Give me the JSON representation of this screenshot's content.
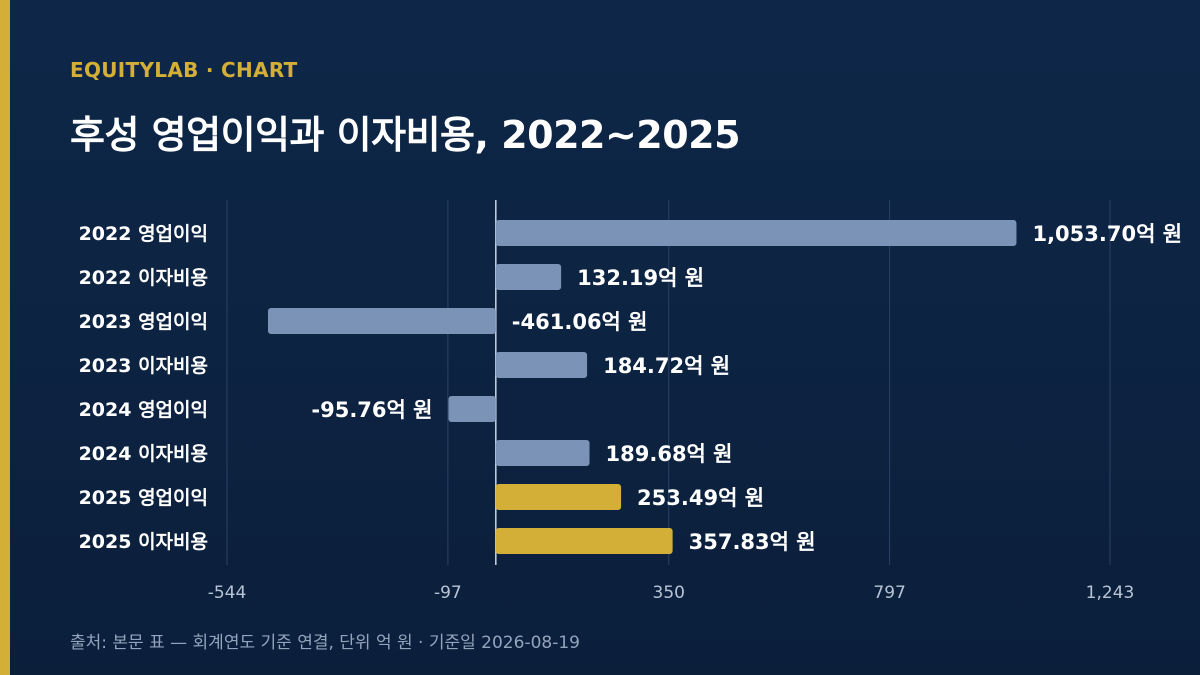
{
  "header": {
    "brand": "EQUITYLAB · CHART",
    "title": "후성 영업이익과 이자비용, 2022~2025"
  },
  "footer": {
    "source": "출처: 본문 표 — 회계연도 기준 연결, 단위 억 원 · 기준일 2026-08-19"
  },
  "colors": {
    "bar_default": "#7b93b6",
    "bar_highlight": "#d4af37",
    "grid": "#2a4265",
    "zero_line": "#c8d3e2",
    "tick_label": "#b8c4d6"
  },
  "chart_data": {
    "type": "bar",
    "orientation": "horizontal",
    "categories": [
      "2022 영업이익",
      "2022 이자비용",
      "2023 영업이익",
      "2023 이자비용",
      "2024 영업이익",
      "2024 이자비용",
      "2025 영업이익",
      "2025 이자비용"
    ],
    "values": [
      1053.7,
      132.19,
      -461.06,
      184.72,
      -95.76,
      189.68,
      253.49,
      357.83
    ],
    "value_labels": [
      "1,053.70억 원",
      "132.19억 원",
      "-461.06억 원",
      "184.72억 원",
      "-95.76억 원",
      "189.68억 원",
      "253.49억 원",
      "357.83억 원"
    ],
    "highlight": [
      false,
      false,
      false,
      false,
      false,
      false,
      true,
      true
    ],
    "xticks": [
      -544,
      -97,
      350,
      797,
      1243
    ],
    "xtick_labels": [
      "-544",
      "-97",
      "350",
      "797",
      "1,243"
    ],
    "xlim": [
      -544,
      1243
    ],
    "grid": true
  }
}
